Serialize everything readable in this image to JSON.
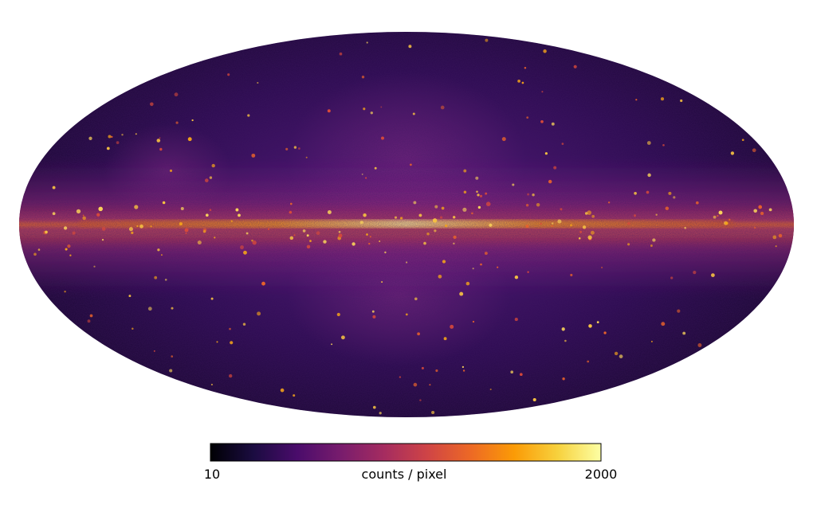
{
  "map": {
    "projection": "mollweide",
    "colormap": "inferno",
    "scale": "log"
  },
  "colorbar": {
    "min_label": "10",
    "max_label": "2000",
    "unit_label": "counts / pixel",
    "min_value": 10,
    "max_value": 2000,
    "colors": [
      "#000004",
      "#1b0c41",
      "#4a0c6b",
      "#781c6d",
      "#a52c60",
      "#cf4446",
      "#ed6925",
      "#fb9b06",
      "#f7d13d",
      "#fcffa4"
    ]
  }
}
